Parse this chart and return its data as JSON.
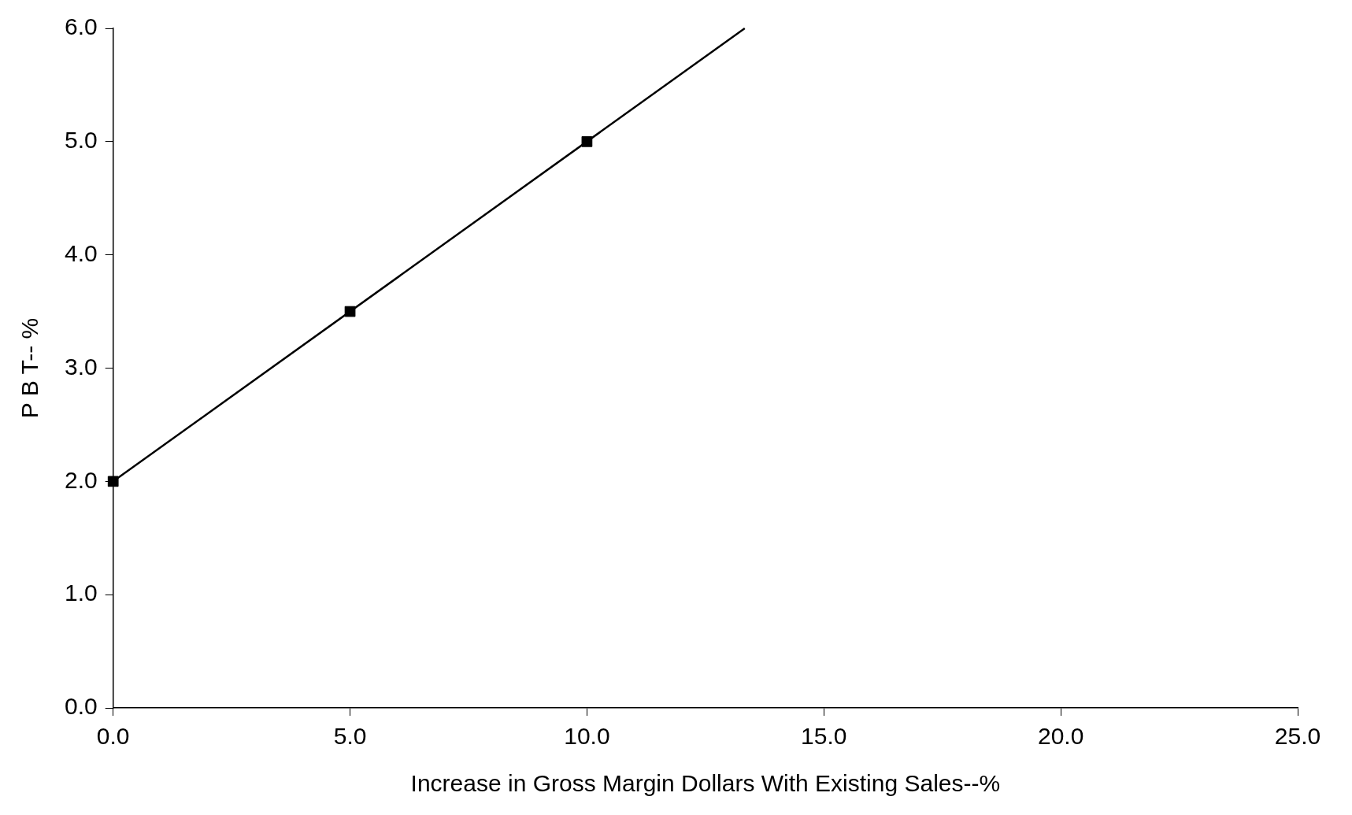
{
  "chart_data": {
    "type": "line",
    "xlabel": "Increase in Gross Margin Dollars With Existing Sales--%",
    "ylabel": "P B T-- %",
    "series": [
      {
        "type": "line",
        "color": "#000000",
        "marker": "none",
        "x": [
          0,
          13.33
        ],
        "values": [
          2,
          6
        ]
      },
      {
        "type": "scatter",
        "color": "#000000",
        "marker": "square",
        "x": [
          0,
          5,
          10
        ],
        "values": [
          2,
          3.5,
          5
        ]
      }
    ],
    "xlim": [
      0,
      25
    ],
    "xticks": [
      {
        "value": 0,
        "label": "0.0"
      },
      {
        "value": 5,
        "label": "5.0"
      },
      {
        "value": 10,
        "label": "10.0"
      },
      {
        "value": 15,
        "label": "15.0"
      },
      {
        "value": 20,
        "label": "20.0"
      },
      {
        "value": 25,
        "label": "25.0"
      }
    ],
    "ylim": [
      0,
      6
    ],
    "yticks": [
      {
        "value": 0,
        "label": "0.0"
      },
      {
        "value": 1,
        "label": "1.0"
      },
      {
        "value": 2,
        "label": "2.0"
      },
      {
        "value": 3,
        "label": "3.0"
      },
      {
        "value": 4,
        "label": "4.0"
      },
      {
        "value": 5,
        "label": "5.0"
      },
      {
        "value": 6,
        "label": "6.0"
      }
    ],
    "grid": false,
    "legend": false
  }
}
